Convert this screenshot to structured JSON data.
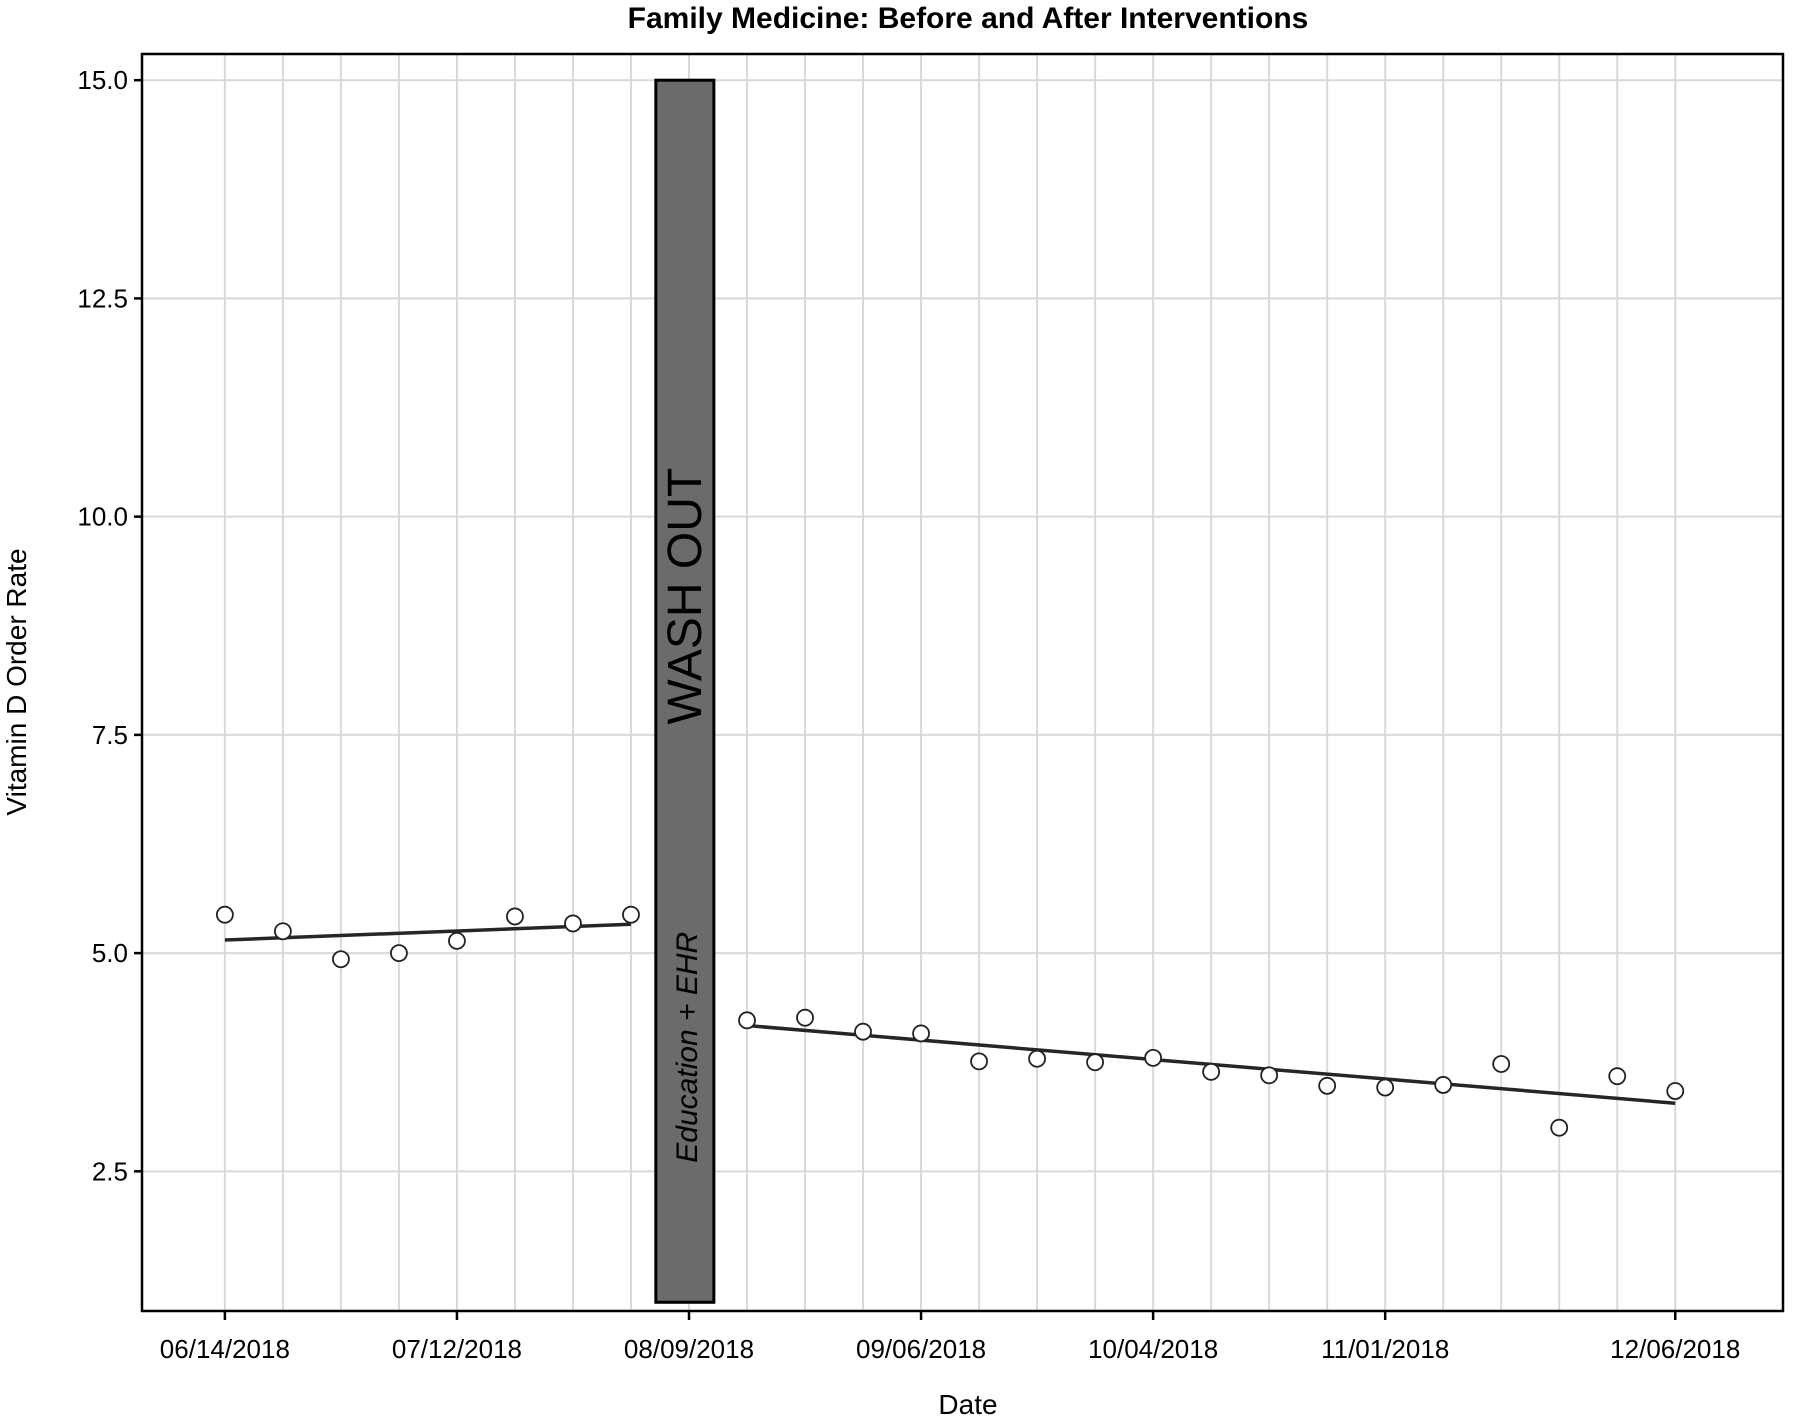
{
  "chart_data": {
    "type": "scatter",
    "title": "Family Medicine: Before and After Interventions",
    "xlabel": "Date",
    "ylabel": "Vitamin D Order Rate",
    "ylim": [
      0.9,
      15.3
    ],
    "xlim": [
      "2018-06-04",
      "2018-12-19"
    ],
    "grid": true,
    "yticks": [
      {
        "value": 2.5,
        "label": "2.5"
      },
      {
        "value": 5.0,
        "label": "5.0"
      },
      {
        "value": 7.5,
        "label": "7.5"
      },
      {
        "value": 10.0,
        "label": "10.0"
      },
      {
        "value": 12.5,
        "label": "12.5"
      },
      {
        "value": 15.0,
        "label": "15.0"
      }
    ],
    "xticks": [
      {
        "date": "2018-06-14",
        "label": "06/14/2018"
      },
      {
        "date": "2018-07-12",
        "label": "07/12/2018"
      },
      {
        "date": "2018-08-09",
        "label": "08/09/2018"
      },
      {
        "date": "2018-09-06",
        "label": "09/06/2018"
      },
      {
        "date": "2018-10-04",
        "label": "10/04/2018"
      },
      {
        "date": "2018-11-01",
        "label": "11/01/2018"
      },
      {
        "date": "2018-12-06",
        "label": "12/06/2018"
      }
    ],
    "minor_grid_dates": [
      "2018-06-21",
      "2018-06-28",
      "2018-07-05",
      "2018-07-19",
      "2018-07-26",
      "2018-08-02",
      "2018-08-16",
      "2018-08-23",
      "2018-08-30",
      "2018-09-13",
      "2018-09-20",
      "2018-09-27",
      "2018-10-11",
      "2018-10-18",
      "2018-10-25",
      "2018-11-08",
      "2018-11-15",
      "2018-11-22",
      "2018-11-29"
    ],
    "series": [
      {
        "x": [
          "2018-06-14",
          "2018-06-21",
          "2018-06-28",
          "2018-07-05",
          "2018-07-12",
          "2018-07-19",
          "2018-07-26",
          "2018-08-02"
        ],
        "y": [
          5.44,
          5.25,
          4.93,
          5.0,
          5.14,
          5.42,
          5.34,
          5.44
        ],
        "trend": {
          "start": [
            "2018-06-14",
            5.15
          ],
          "end": [
            "2018-08-02",
            5.33
          ]
        }
      },
      {
        "x": [
          "2018-08-16",
          "2018-08-23",
          "2018-08-30",
          "2018-09-06",
          "2018-09-13",
          "2018-09-20",
          "2018-09-27",
          "2018-10-04",
          "2018-10-11",
          "2018-10-18",
          "2018-10-25",
          "2018-11-01",
          "2018-11-08",
          "2018-11-15",
          "2018-11-22",
          "2018-11-29",
          "2018-12-06"
        ],
        "y": [
          4.23,
          4.26,
          4.1,
          4.08,
          3.76,
          3.79,
          3.75,
          3.8,
          3.64,
          3.6,
          3.48,
          3.46,
          3.49,
          3.73,
          3.0,
          3.59,
          3.42
        ],
        "trend": {
          "start": [
            "2018-08-16",
            4.17
          ],
          "end": [
            "2018-12-06",
            3.28
          ]
        }
      }
    ],
    "annotations": {
      "band": {
        "x_start": "2018-08-05",
        "x_end": "2018-08-12",
        "y_start": 1.0,
        "y_end": 15.0,
        "color": "#6b6b6b"
      },
      "band_label_main": "WASH OUT",
      "band_label_sub": "Education + EHR"
    }
  }
}
